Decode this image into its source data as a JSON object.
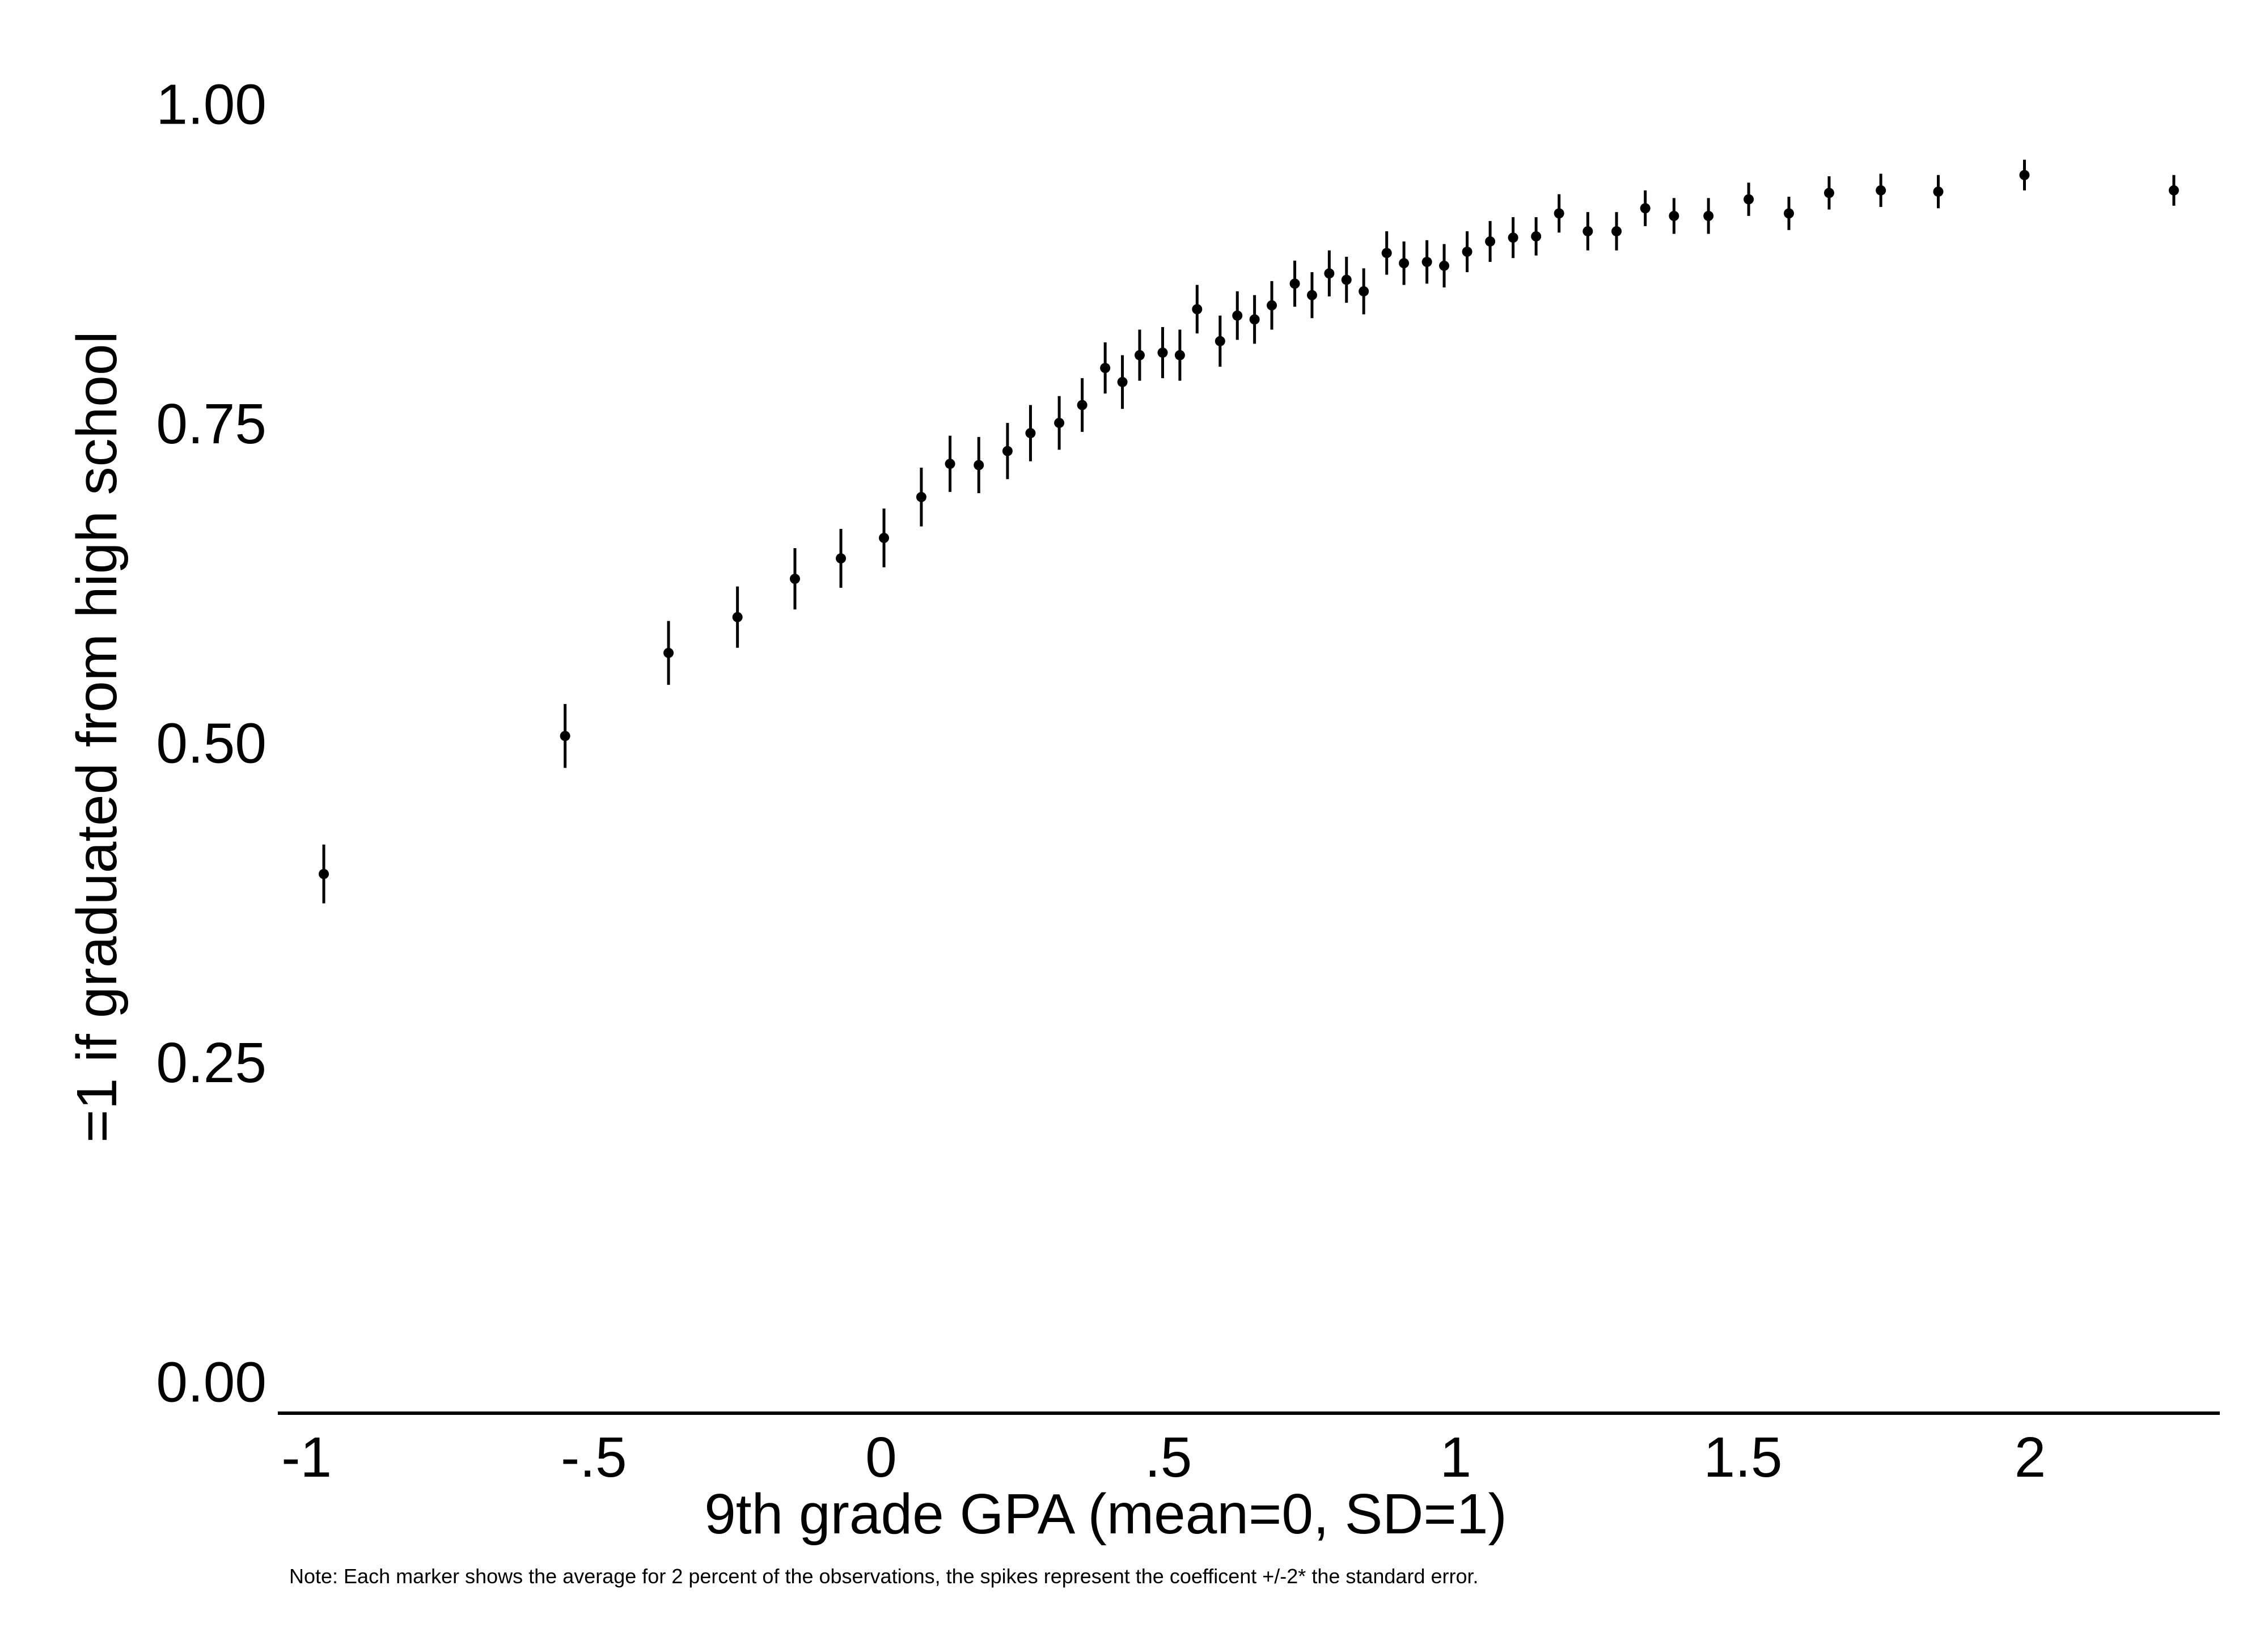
{
  "chart_data": {
    "type": "scatter",
    "title": "",
    "xlabel": "9th grade GPA (mean=0, SD=1)",
    "ylabel": "=1 if graduated from high school",
    "note": "Note: Each marker shows the average for 2 percent of the observations, the spikes represent the coefficent +/-2* the standard error.",
    "xlim": [
      -1.05,
      2.33
    ],
    "ylim": [
      -0.025,
      1.01
    ],
    "xticks": [
      -1,
      -0.5,
      0,
      0.5,
      1,
      1.5,
      2
    ],
    "xtick_labels": [
      "-1",
      "-.5",
      "0",
      ".5",
      "1",
      "1.5",
      "2"
    ],
    "yticks": [
      0,
      0.25,
      0.5,
      0.75,
      1
    ],
    "ytick_labels": [
      "0.00",
      "0.25",
      "0.50",
      "0.75",
      "1.00"
    ],
    "grid": false,
    "legend": "none",
    "marker_color": "#000000",
    "x": [
      -0.97,
      -0.55,
      -0.37,
      -0.25,
      -0.15,
      -0.07,
      0.005,
      0.07,
      0.12,
      0.17,
      0.22,
      0.26,
      0.31,
      0.35,
      0.39,
      0.42,
      0.45,
      0.49,
      0.52,
      0.55,
      0.59,
      0.62,
      0.65,
      0.68,
      0.72,
      0.75,
      0.78,
      0.81,
      0.84,
      0.88,
      0.91,
      0.95,
      0.98,
      1.02,
      1.06,
      1.1,
      1.14,
      1.18,
      1.23,
      1.28,
      1.33,
      1.38,
      1.44,
      1.51,
      1.58,
      1.65,
      1.74,
      1.84,
      1.99,
      2.25
    ],
    "y": [
      0.397,
      0.505,
      0.57,
      0.598,
      0.628,
      0.644,
      0.66,
      0.692,
      0.718,
      0.717,
      0.728,
      0.742,
      0.75,
      0.764,
      0.793,
      0.782,
      0.803,
      0.805,
      0.803,
      0.839,
      0.814,
      0.834,
      0.831,
      0.842,
      0.859,
      0.85,
      0.867,
      0.862,
      0.853,
      0.883,
      0.875,
      0.876,
      0.873,
      0.884,
      0.892,
      0.895,
      0.896,
      0.914,
      0.9,
      0.9,
      0.918,
      0.912,
      0.912,
      0.925,
      0.914,
      0.93,
      0.932,
      0.931,
      0.944,
      0.932
    ],
    "error": [
      0.023,
      0.025,
      0.025,
      0.024,
      0.024,
      0.023,
      0.023,
      0.023,
      0.022,
      0.022,
      0.022,
      0.022,
      0.021,
      0.021,
      0.02,
      0.021,
      0.02,
      0.02,
      0.02,
      0.019,
      0.02,
      0.019,
      0.019,
      0.019,
      0.018,
      0.018,
      0.018,
      0.018,
      0.018,
      0.017,
      0.017,
      0.017,
      0.017,
      0.016,
      0.016,
      0.016,
      0.015,
      0.015,
      0.015,
      0.015,
      0.014,
      0.014,
      0.014,
      0.013,
      0.013,
      0.013,
      0.013,
      0.013,
      0.012,
      0.012
    ]
  }
}
